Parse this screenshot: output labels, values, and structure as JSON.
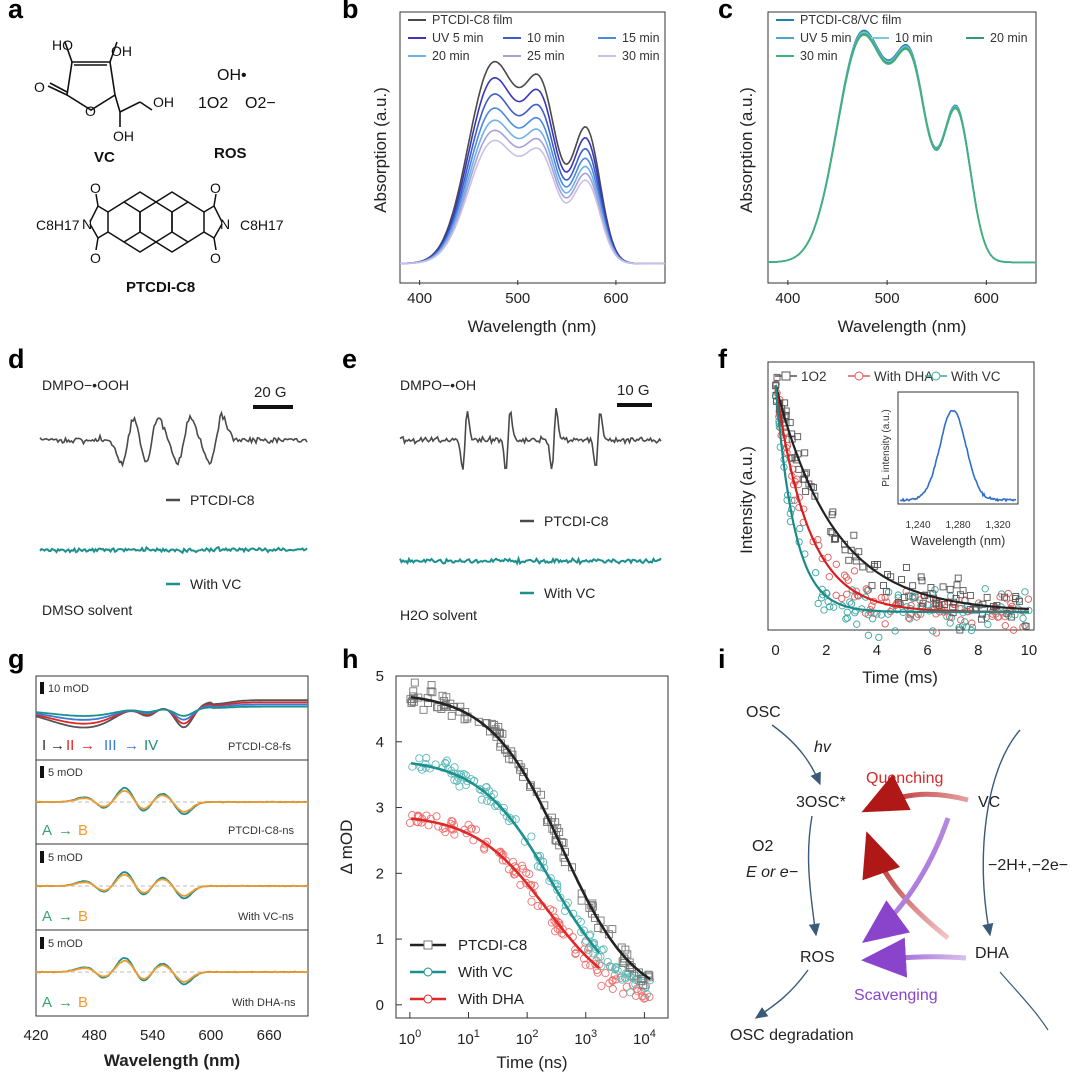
{
  "panels": {
    "a": {
      "letter": "a",
      "vc_label": "VC",
      "ros_label": "ROS",
      "ptcdi_label": "PTCDI-C8",
      "ho1": "HO",
      "ho2": "OH",
      "oh_end": "OH",
      "oh_bottom": "OH",
      "o_ring": "O",
      "o_carbonyl": "O",
      "ros_oh": "OH•",
      "ros_1o2": "1O2",
      "ros_o2": "O2−",
      "chain_left": "C8H17",
      "chain_right": "C8H17",
      "n_left": "N",
      "n_right": "N"
    },
    "b": {
      "letter": "b"
    },
    "c": {
      "letter": "c"
    },
    "d": {
      "letter": "d",
      "adduct": "DMPO−•OOH",
      "scale": "20 G",
      "trace1": "PTCDI-C8",
      "trace2": "With VC",
      "solvent": "DMSO solvent"
    },
    "e": {
      "letter": "e",
      "adduct": "DMPO−•OH",
      "scale": "10 G",
      "trace1": "PTCDI-C8",
      "trace2": "With VC",
      "solvent": "H2O solvent"
    },
    "f": {
      "letter": "f"
    },
    "g": {
      "letter": "g",
      "sub1_scale": "10 mOD",
      "sub1_name": "PTCDI-C8-fs",
      "sub1_steps": [
        "I",
        "II",
        "III",
        "IV"
      ],
      "sub2_scale": "5 mOD",
      "sub2_name": "PTCDI-C8-ns",
      "sub3_scale": "5 mOD",
      "sub3_name": "With VC-ns",
      "sub4_scale": "5 mOD",
      "sub4_name": "With DHA-ns",
      "step_a": "A",
      "step_b": "B"
    },
    "h": {
      "letter": "h"
    },
    "i": {
      "letter": "i",
      "osc": "OSC",
      "hv": "hv",
      "triplet": "3OSC*",
      "vc": "VC",
      "quenching": "Quenching",
      "o2": "O2",
      "e_or": "E or e−",
      "oxidation": "−2H+,−2e−",
      "ros": "ROS",
      "dha": "DHA",
      "scavenging": "Scavenging",
      "degradation": "OSC degradation"
    }
  },
  "colors": {
    "black": "#404040",
    "teal": "#1c8f8f",
    "red": "#e02828",
    "orange": "#f29a2e",
    "green": "#3aa56a",
    "purple": "#9b59d6",
    "blue": "#3a6fd0"
  },
  "chart_data": [
    {
      "panel": "b",
      "type": "line",
      "xlabel": "Wavelength (nm)",
      "ylabel": "Absorption (a.u.)",
      "xlim": [
        380,
        650
      ],
      "xticks": [
        400,
        500,
        600
      ],
      "legend": [
        "PTCDI-C8 film",
        "UV 5 min",
        "10 min",
        "15 min",
        "20 min",
        "25 min",
        "30 min"
      ],
      "series": [
        {
          "name": "PTCDI-C8 film",
          "color": "#4a4a4a",
          "scale": 1.0
        },
        {
          "name": "UV 5 min",
          "color": "#3a37b8",
          "scale": 0.92
        },
        {
          "name": "10 min",
          "color": "#3e5ccc",
          "scale": 0.84
        },
        {
          "name": "15 min",
          "color": "#4a8ae0",
          "scale": 0.77
        },
        {
          "name": "20 min",
          "color": "#6fb1e8",
          "scale": 0.71
        },
        {
          "name": "25 min",
          "color": "#a9a0d8",
          "scale": 0.66
        },
        {
          "name": "30 min",
          "color": "#c8c0e6",
          "scale": 0.61
        }
      ]
    },
    {
      "panel": "c",
      "type": "line",
      "xlabel": "Wavelength (nm)",
      "ylabel": "Absorption (a.u.)",
      "xlim": [
        380,
        650
      ],
      "xticks": [
        400,
        500,
        600
      ],
      "legend": [
        "PTCDI-C8/VC film",
        "UV 5 min",
        "10 min",
        "20 min",
        "30 min"
      ],
      "series": [
        {
          "name": "PTCDI-C8/VC film",
          "color": "#1f7fa8",
          "scale": 1.0
        },
        {
          "name": "UV 5 min",
          "color": "#4aa6c8",
          "scale": 0.995
        },
        {
          "name": "10 min",
          "color": "#7ec8d8",
          "scale": 0.99
        },
        {
          "name": "20 min",
          "color": "#2f9e6e",
          "scale": 0.985
        },
        {
          "name": "30 min",
          "color": "#42b07a",
          "scale": 0.98
        }
      ]
    },
    {
      "panel": "f",
      "type": "scatter",
      "xlabel": "Time (ms)",
      "ylabel": "Intensity (a.u.)",
      "xlim": [
        -0.3,
        10.2
      ],
      "xticks": [
        0,
        2,
        4,
        6,
        8,
        10
      ],
      "legend": [
        "1O2",
        "With DHA",
        "With VC"
      ],
      "series": [
        {
          "name": "1O2",
          "color": "#555555",
          "tau": 2.3
        },
        {
          "name": "With DHA",
          "color": "#e05a5a",
          "tau": 1.3
        },
        {
          "name": "With VC",
          "color": "#3aa6a0",
          "tau": 0.75
        }
      ],
      "inset": {
        "xlabel": "Wavelength (nm)",
        "ylabel": "PL intensity (a.u.)",
        "xticks": [
          1240,
          1280,
          1320
        ],
        "peak": 1275
      }
    },
    {
      "panel": "g",
      "type": "line",
      "xlabel": "Wavelength (nm)",
      "xlim": [
        420,
        700
      ],
      "xticks": [
        420,
        480,
        540,
        600,
        660
      ]
    },
    {
      "panel": "h",
      "type": "scatter",
      "xlabel": "Time (ns)",
      "ylabel": "Δ mOD",
      "x_scale": "log",
      "xticks_exp": [
        0,
        1,
        2,
        3,
        4
      ],
      "ylim": [
        -0.2,
        5
      ],
      "yticks": [
        0,
        1,
        2,
        3,
        4,
        5
      ],
      "legend": [
        "PTCDI-C8",
        "With VC",
        "With DHA"
      ],
      "series": [
        {
          "name": "PTCDI-C8",
          "color": "#222222",
          "y0": 4.75,
          "t": 400
        },
        {
          "name": "With VC",
          "color": "#1c8f8f",
          "y0": 3.75,
          "t": 260
        },
        {
          "name": "With DHA",
          "color": "#e02828",
          "y0": 2.9,
          "t": 220
        }
      ]
    }
  ]
}
